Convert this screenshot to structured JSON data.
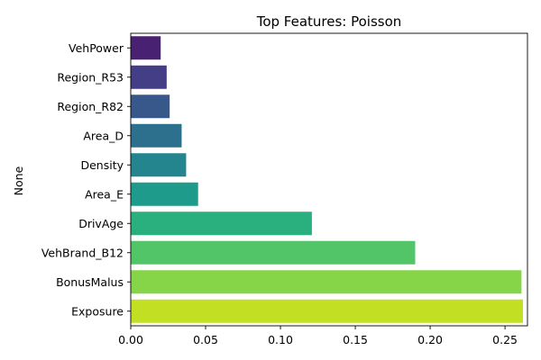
{
  "chart_data": {
    "type": "bar",
    "orientation": "horizontal",
    "title": "Top Features: Poisson",
    "xlabel": "",
    "ylabel": "None",
    "categories": [
      "VehPower",
      "Region_R53",
      "Region_R82",
      "Area_D",
      "Density",
      "Area_E",
      "DrivAge",
      "VehBrand_B12",
      "BonusMalus",
      "Exposure"
    ],
    "values": [
      0.02,
      0.024,
      0.026,
      0.034,
      0.037,
      0.045,
      0.121,
      0.19,
      0.261,
      0.262
    ],
    "colors": [
      "#482173",
      "#433e85",
      "#38588c",
      "#2d708e",
      "#25858e",
      "#1e9b8a",
      "#2ab07f",
      "#52c569",
      "#86d549",
      "#c2df23"
    ],
    "xlim": [
      0,
      0.265
    ],
    "xticks": [
      0.0,
      0.05,
      0.1,
      0.15,
      0.2,
      0.25
    ],
    "xtick_labels": [
      "0.00",
      "0.05",
      "0.10",
      "0.15",
      "0.20",
      "0.25"
    ],
    "grid": false,
    "legend": "none"
  }
}
